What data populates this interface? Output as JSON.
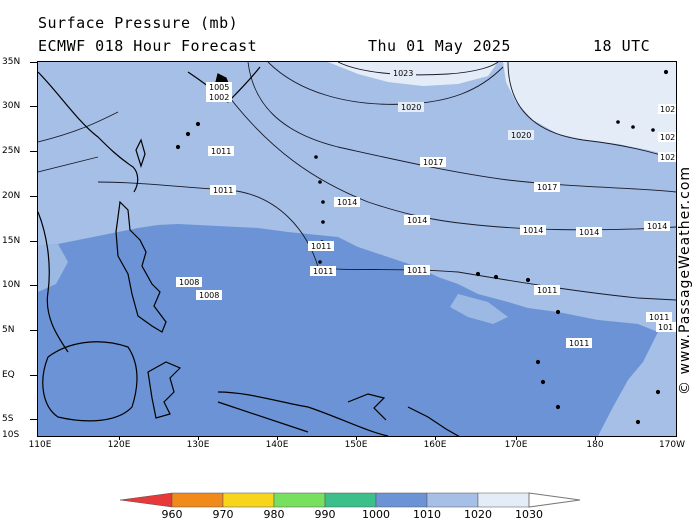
{
  "header": {
    "title": "Surface Pressure (mb)",
    "model": "ECMWF 018 Hour Forecast",
    "date": "Thu 01 May 2025",
    "time": "18 UTC"
  },
  "credit": "© www.PassageWeather.com",
  "axes": {
    "lat_labels": [
      "35N",
      "30N",
      "25N",
      "20N",
      "15N",
      "10N",
      "5N",
      "EQ",
      "5S",
      "10S"
    ],
    "lon_labels": [
      "110E",
      "120E",
      "130E",
      "140E",
      "150E",
      "160E",
      "170E",
      "180",
      "170W"
    ]
  },
  "colorbar": {
    "labels": [
      "960",
      "970",
      "980",
      "990",
      "1000",
      "1010",
      "1020",
      "1030"
    ],
    "colors": [
      "#e8393a",
      "#f08a1a",
      "#f7d51c",
      "#77e05e",
      "#3cbf8a",
      "#6b93d6",
      "#a5bfe6",
      "#e4ecf8"
    ]
  },
  "colors": {
    "p1000_1010": "#6b93d6",
    "p1010_1020": "#a5bfe6",
    "p1020_1030": "#e4ecf8",
    "land": "#000000"
  },
  "contour_labels": {
    "l1023": "1023",
    "l1020a": "1020",
    "l1020b": "1020",
    "l1017a": "1017",
    "l1017b": "1017",
    "l1014a": "1014",
    "l1014b": "1014",
    "l1014c": "1014",
    "l1014d": "1014",
    "l1011a": "1011",
    "l1011b": "1011",
    "l1011c": "1011",
    "l1011d": "1011",
    "l1011e": "1011",
    "l1011f": "1011",
    "l1011g": "1011",
    "l1008a": "1008",
    "l1008b": "1008",
    "l1005": "1005",
    "l1002": "1002",
    "r102a": "102",
    "r102b": "102",
    "r102c": "102",
    "r101": "101",
    "r101b": "1011",
    "r1014": "1014"
  }
}
